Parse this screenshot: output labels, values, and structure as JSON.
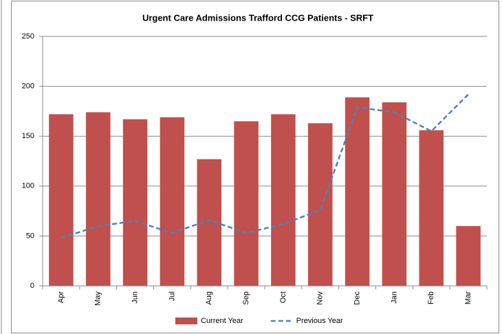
{
  "chart_data": {
    "type": "bar",
    "title": "Urgent Care Admissions Trafford CCG Patients - SRFT",
    "categories": [
      "Apr",
      "May",
      "Jun",
      "Jul",
      "Aug",
      "Sep",
      "Oct",
      "Nov",
      "Dec",
      "Jan",
      "Feb",
      "Mar"
    ],
    "series": [
      {
        "name": "Current Year",
        "type": "bar",
        "color": "#c0504d",
        "values": [
          172,
          174,
          167,
          169,
          127,
          165,
          172,
          163,
          189,
          184,
          156,
          60
        ]
      },
      {
        "name": "Previous Year",
        "type": "line",
        "color": "#4f81bd",
        "values": [
          48,
          60,
          65,
          53,
          66,
          53,
          62,
          76,
          179,
          174,
          155,
          192
        ]
      }
    ],
    "ylim": [
      0,
      250
    ],
    "yticks": [
      0,
      50,
      100,
      150,
      200,
      250
    ],
    "grid": true,
    "legend": "bottom"
  }
}
